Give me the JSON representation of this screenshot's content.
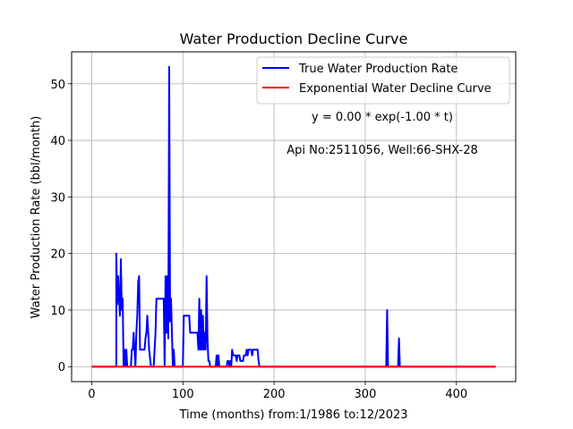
{
  "chart_data": {
    "type": "line",
    "title": "Water Production Decline Curve",
    "xlabel": "Time (months) from:1/1986 to:12/2023",
    "ylabel": "Water Production Rate (bbl/month)",
    "xlim": [
      -22,
      465
    ],
    "ylim": [
      -2.65,
      55.65
    ],
    "x_ticks": [
      0,
      100,
      200,
      300,
      400
    ],
    "y_ticks": [
      0,
      10,
      20,
      30,
      40,
      50
    ],
    "grid": true,
    "legend_position": "top-right",
    "annotations": [
      "y = 0.00 * exp(-1.00 * t)",
      "Api No:2511056, Well:66-SHX-28"
    ],
    "colors": {
      "true": "#0000ff",
      "fit": "#ff0000",
      "grid": "#b0b0b0"
    },
    "series": [
      {
        "name": "True Water Production Rate",
        "color": "#0000ff",
        "points": [
          [
            0,
            0
          ],
          [
            27,
            0
          ],
          [
            27,
            20
          ],
          [
            28,
            11
          ],
          [
            29,
            16
          ],
          [
            30,
            12
          ],
          [
            31,
            9
          ],
          [
            32,
            19
          ],
          [
            33,
            10
          ],
          [
            34,
            12
          ],
          [
            35,
            0
          ],
          [
            36,
            3
          ],
          [
            37,
            0
          ],
          [
            38,
            3
          ],
          [
            39,
            0
          ],
          [
            43,
            0
          ],
          [
            44,
            3
          ],
          [
            45,
            3
          ],
          [
            46,
            6
          ],
          [
            47,
            3
          ],
          [
            48,
            0
          ],
          [
            49,
            6
          ],
          [
            50,
            9
          ],
          [
            51,
            15
          ],
          [
            52,
            16
          ],
          [
            53,
            3
          ],
          [
            54,
            3
          ],
          [
            58,
            3
          ],
          [
            59,
            5
          ],
          [
            60,
            6
          ],
          [
            61,
            9
          ],
          [
            62,
            6
          ],
          [
            63,
            3
          ],
          [
            65,
            0
          ],
          [
            68,
            0
          ],
          [
            69,
            3
          ],
          [
            70,
            6
          ],
          [
            71,
            12
          ],
          [
            79,
            12
          ],
          [
            80,
            0
          ],
          [
            81,
            16
          ],
          [
            82,
            6
          ],
          [
            83,
            16
          ],
          [
            84,
            5
          ],
          [
            85,
            53
          ],
          [
            86,
            8
          ],
          [
            87,
            12
          ],
          [
            88,
            6
          ],
          [
            89,
            0
          ],
          [
            90,
            3
          ],
          [
            91,
            0
          ],
          [
            100,
            0
          ],
          [
            101,
            9
          ],
          [
            107,
            9
          ],
          [
            108,
            6
          ],
          [
            116,
            6
          ],
          [
            117,
            3
          ],
          [
            118,
            12
          ],
          [
            119,
            3
          ],
          [
            120,
            10
          ],
          [
            121,
            3
          ],
          [
            122,
            9
          ],
          [
            123,
            3
          ],
          [
            124,
            6
          ],
          [
            125,
            3
          ],
          [
            126,
            16
          ],
          [
            127,
            5
          ],
          [
            128,
            1
          ],
          [
            129,
            1
          ],
          [
            130,
            0
          ],
          [
            136,
            0
          ],
          [
            137,
            2
          ],
          [
            138,
            0
          ],
          [
            139,
            2
          ],
          [
            140,
            0
          ],
          [
            148,
            0
          ],
          [
            149,
            1
          ],
          [
            150,
            1
          ],
          [
            151,
            0
          ],
          [
            152,
            1
          ],
          [
            153,
            0
          ],
          [
            154,
            3
          ],
          [
            155,
            2
          ],
          [
            158,
            2
          ],
          [
            159,
            1
          ],
          [
            160,
            2
          ],
          [
            162,
            2
          ],
          [
            163,
            1
          ],
          [
            166,
            1
          ],
          [
            167,
            2
          ],
          [
            169,
            2
          ],
          [
            170,
            3
          ],
          [
            171,
            2
          ],
          [
            172,
            3
          ],
          [
            175,
            3
          ],
          [
            176,
            2
          ],
          [
            177,
            3
          ],
          [
            182,
            3
          ],
          [
            183,
            1
          ],
          [
            184,
            0
          ],
          [
            323,
            0
          ],
          [
            324,
            10
          ],
          [
            325,
            0
          ],
          [
            336,
            0
          ],
          [
            337,
            5
          ],
          [
            338,
            0
          ],
          [
            443,
            0
          ]
        ]
      },
      {
        "name": "Exponential Water Decline Curve",
        "color": "#ff0000",
        "points": [
          [
            0,
            0
          ],
          [
            443,
            0
          ]
        ]
      }
    ]
  }
}
